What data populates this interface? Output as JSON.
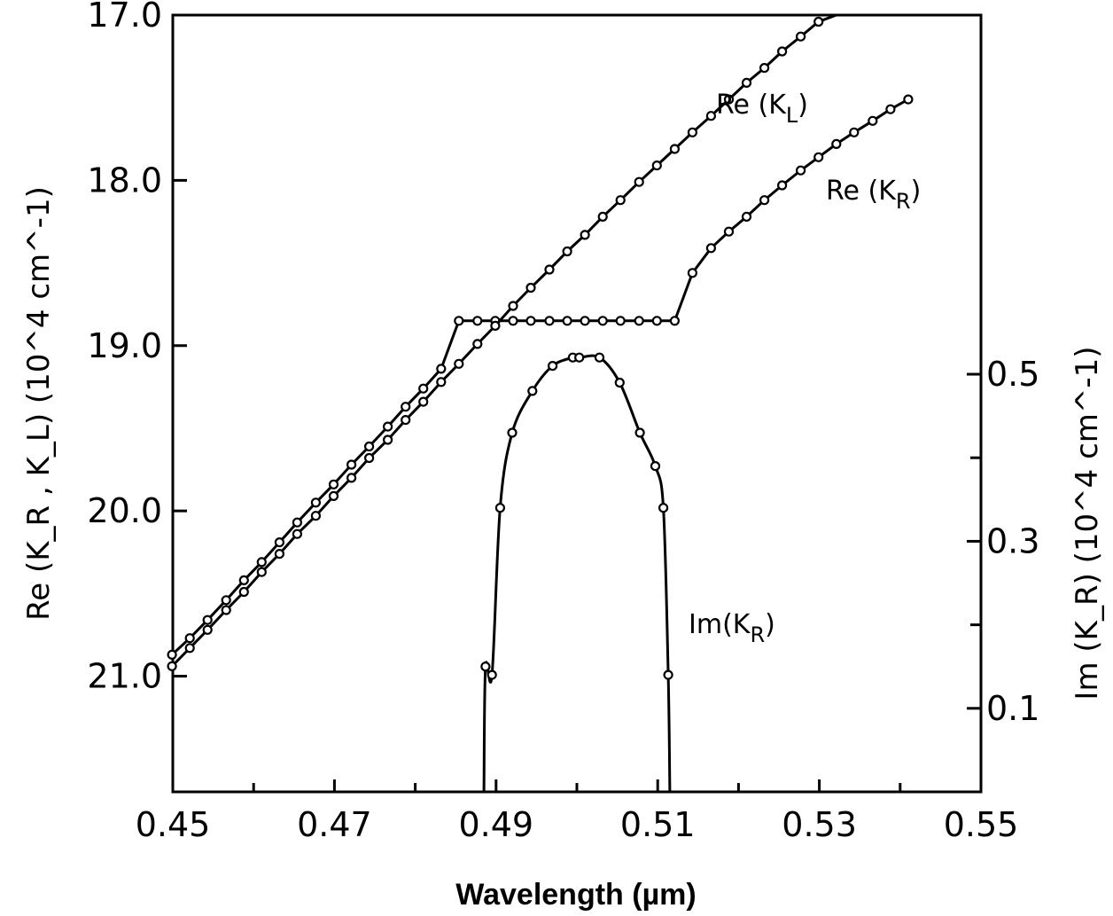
{
  "chart_data": {
    "type": "line",
    "xlabel": "Wavelength (µm)",
    "ylabel_left": "Re (K_R , K_L) (10^4 cm^-1)",
    "ylabel_right": "Im (K_R) (10^4 cm^-1)",
    "x_ticks": [
      "0.45",
      "0.47",
      "0.49",
      "0.51",
      "0.53",
      "0.55"
    ],
    "y_left_ticks": [
      "17.0",
      "18.0",
      "19.0",
      "20.0",
      "21.0"
    ],
    "y_right_ticks": [
      "0.5",
      "0.3",
      "0.1"
    ],
    "xlim": [
      0.45,
      0.55
    ],
    "ylim_left": [
      21.7,
      17.0
    ],
    "ylim_right": [
      0.0,
      0.93
    ],
    "grid": false,
    "series": [
      {
        "name": "Re(K_L)",
        "axis": "left",
        "x": [
          0.4499,
          0.4521,
          0.4543,
          0.4566,
          0.4588,
          0.461,
          0.4632,
          0.4654,
          0.4677,
          0.4699,
          0.4721,
          0.4743,
          0.4766,
          0.4788,
          0.481,
          0.4832,
          0.4854,
          0.4877,
          0.4899,
          0.4921,
          0.4943,
          0.4966,
          0.4988,
          0.501,
          0.5032,
          0.5054,
          0.5077,
          0.5099,
          0.5121,
          0.5143,
          0.5166,
          0.5188,
          0.521,
          0.5232,
          0.5254,
          0.5277,
          0.5299,
          0.5321,
          0.5343,
          0.5366,
          0.5388,
          0.541
        ],
        "y": [
          20.87,
          20.77,
          20.66,
          20.54,
          20.42,
          20.31,
          20.19,
          20.07,
          19.95,
          19.84,
          19.72,
          19.61,
          19.49,
          19.37,
          19.26,
          19.14,
          18.85,
          18.85,
          18.85,
          18.85,
          18.85,
          18.85,
          18.85,
          18.85,
          18.85,
          18.85,
          18.85,
          18.85,
          18.85,
          18.56,
          18.41,
          18.31,
          18.22,
          18.12,
          18.03,
          17.94,
          17.86,
          17.78,
          17.71,
          17.64,
          17.57,
          17.51
        ]
      },
      {
        "name": "Re(K_R)",
        "axis": "left",
        "x": [
          0.4499,
          0.4521,
          0.4543,
          0.4566,
          0.4588,
          0.461,
          0.4632,
          0.4654,
          0.4677,
          0.4699,
          0.4721,
          0.4743,
          0.4766,
          0.4788,
          0.481,
          0.4832,
          0.4854,
          0.4877,
          0.4899,
          0.4921,
          0.4943,
          0.4966,
          0.4988,
          0.501,
          0.5032,
          0.5054,
          0.5077,
          0.5099,
          0.5121,
          0.5143,
          0.5166,
          0.5188,
          0.521,
          0.5232,
          0.5254,
          0.5277,
          0.5299,
          0.5321,
          0.5343,
          0.5366,
          0.5388,
          0.541
        ],
        "y": [
          20.94,
          20.83,
          20.72,
          20.6,
          20.49,
          20.37,
          20.26,
          20.14,
          20.03,
          19.91,
          19.8,
          19.68,
          19.57,
          19.45,
          19.34,
          19.22,
          19.11,
          18.99,
          18.88,
          18.76,
          18.65,
          18.54,
          18.43,
          18.33,
          18.22,
          18.12,
          18.01,
          17.91,
          17.81,
          17.71,
          17.61,
          17.51,
          17.41,
          17.32,
          17.22,
          17.13,
          17.04,
          16.95,
          16.86,
          16.78,
          16.7,
          16.62
        ]
      },
      {
        "name": "Im(K_R)",
        "axis": "right",
        "x": [
          0.4885,
          0.4887,
          0.4895,
          0.4905,
          0.492,
          0.4945,
          0.497,
          0.4995,
          0.5003,
          0.5028,
          0.5053,
          0.5078,
          0.5097,
          0.5107,
          0.5113,
          0.5115
        ],
        "y": [
          0.0,
          0.15,
          0.14,
          0.34,
          0.43,
          0.48,
          0.51,
          0.52,
          0.52,
          0.52,
          0.49,
          0.43,
          0.39,
          0.34,
          0.14,
          0.0
        ]
      }
    ]
  },
  "annotations": {
    "re_kl": "Re (K",
    "re_kl_sub": "L",
    "re_kr": "Re (K",
    "re_kr_sub": "R",
    "im_kr": "Im(K",
    "im_kr_sub": "R",
    "close": ")"
  }
}
